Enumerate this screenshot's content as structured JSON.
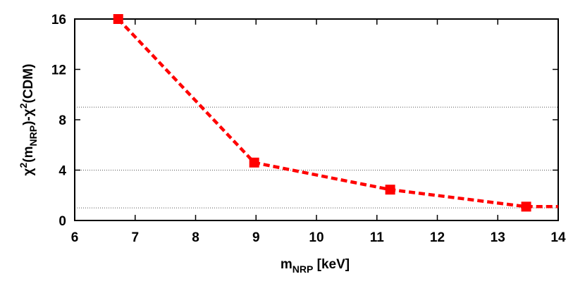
{
  "chart_data": {
    "type": "line",
    "xlabel": {
      "main": "m",
      "sub": "NRP",
      "tail": " [keV]"
    },
    "ylabel": {
      "p1": "χ",
      "sup1": "2",
      "p2": "(m",
      "sub1": "NRP",
      "p3": ")-χ",
      "sup2": "2",
      "p4": "(CDM)"
    },
    "xlim": [
      6,
      14
    ],
    "ylim": [
      0,
      16
    ],
    "xticks": [
      6,
      7,
      8,
      9,
      10,
      11,
      12,
      13,
      14
    ],
    "yticks": [
      0,
      4,
      8,
      12,
      16
    ],
    "series": [
      {
        "x": [
          6.72,
          8.97,
          11.22,
          13.47,
          14.0
        ],
        "y": [
          16.0,
          4.6,
          2.45,
          1.1,
          1.1
        ],
        "marker_count": 4,
        "color": "#ff0000",
        "line_style": "dashed",
        "marker": "square"
      }
    ],
    "reference_lines": [
      {
        "y": 9,
        "style": "dotted",
        "color": "#555555"
      },
      {
        "y": 4,
        "style": "dotted",
        "color": "#555555"
      },
      {
        "y": 1,
        "style": "dotted",
        "color": "#555555"
      }
    ],
    "grid": false,
    "legend": "none"
  }
}
